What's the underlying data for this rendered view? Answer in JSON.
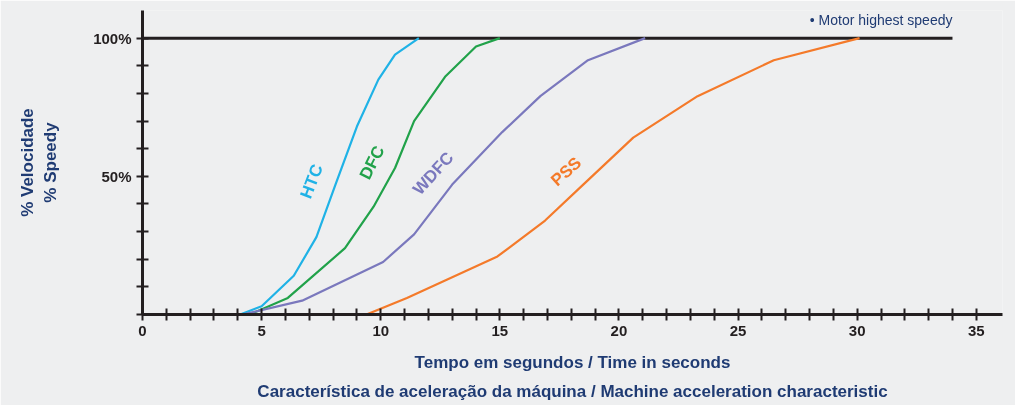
{
  "chart_data": {
    "type": "line",
    "xlabel": "Tempo em segundos / Time in seconds",
    "ylabel": "% Velocidade\n% Speedy",
    "annotations": [
      "Característica de aceleração da máquina / Machine acceleration characteristic"
    ],
    "xlim": [
      0,
      36.1
    ],
    "ylim": [
      0,
      110
    ],
    "xticks": [
      0,
      {
        "value": 1,
        "label": null
      },
      {
        "value": 2,
        "label": null
      },
      {
        "value": 3,
        "label": null
      },
      {
        "value": 4,
        "label": null
      },
      5,
      {
        "value": 6,
        "label": null
      },
      {
        "value": 7,
        "label": null
      },
      {
        "value": 8,
        "label": null
      },
      {
        "value": 9,
        "label": null
      },
      10,
      {
        "value": 11,
        "label": null
      },
      {
        "value": 12,
        "label": null
      },
      {
        "value": 13,
        "label": null
      },
      {
        "value": 14,
        "label": null
      },
      15,
      {
        "value": 16,
        "label": null
      },
      {
        "value": 17,
        "label": null
      },
      {
        "value": 18,
        "label": null
      },
      {
        "value": 19,
        "label": null
      },
      20,
      {
        "value": 21,
        "label": null
      },
      {
        "value": 22,
        "label": null
      },
      {
        "value": 23,
        "label": null
      },
      {
        "value": 24,
        "label": null
      },
      25,
      {
        "value": 26,
        "label": null
      },
      {
        "value": 27,
        "label": null
      },
      {
        "value": 28,
        "label": null
      },
      {
        "value": 29,
        "label": null
      },
      30,
      {
        "value": 31,
        "label": null
      },
      {
        "value": 32,
        "label": null
      },
      {
        "value": 33,
        "label": null
      },
      {
        "value": 34,
        "label": null
      },
      35
    ],
    "yticks": [
      {
        "value": 0,
        "label": null
      },
      {
        "value": 10,
        "label": null
      },
      {
        "value": 20,
        "label": null
      },
      {
        "value": 30,
        "label": null
      },
      {
        "value": 40,
        "label": null
      },
      {
        "value": 50,
        "label": "50%"
      },
      {
        "value": 60,
        "label": null
      },
      {
        "value": 70,
        "label": null
      },
      {
        "value": 80,
        "label": null
      },
      {
        "value": 90,
        "label": null
      },
      {
        "value": 100,
        "label": "100%"
      }
    ],
    "grid": false,
    "legend": false,
    "marker": "none",
    "line_style": "solid",
    "ref_lines": [
      {
        "axis": "y",
        "value": 100,
        "label": "• Motor highest speedy",
        "color": "#231f20"
      }
    ],
    "series": [
      {
        "name": "HTC",
        "color": "#1fb2e6",
        "x": [
          4.1,
          5.0,
          6.35,
          7.3,
          8.1,
          9.0,
          9.9,
          10.6,
          11.6
        ],
        "values": [
          0,
          3,
          14,
          28,
          47,
          68,
          85,
          94,
          100
        ]
      },
      {
        "name": "DFC",
        "color": "#21a24a",
        "x": [
          4.5,
          6.1,
          8.5,
          9.7,
          10.6,
          11.4,
          12.7,
          14.0,
          15.0
        ],
        "values": [
          0,
          6,
          24,
          39,
          53,
          70,
          86,
          97,
          100
        ]
      },
      {
        "name": "WDFC",
        "color": "#7a78bd",
        "x": [
          4.2,
          6.7,
          10.1,
          11.4,
          13.0,
          15.1,
          16.7,
          18.7,
          21.1
        ],
        "values": [
          0,
          5,
          19,
          29,
          47,
          66,
          79,
          92,
          100
        ]
      },
      {
        "name": "PSS",
        "color": "#f47a2a",
        "x": [
          9.4,
          11.1,
          14.9,
          16.9,
          18.5,
          20.6,
          23.3,
          26.5,
          30.1
        ],
        "values": [
          0,
          6,
          21,
          34,
          47,
          64,
          79,
          92,
          100
        ]
      }
    ]
  }
}
